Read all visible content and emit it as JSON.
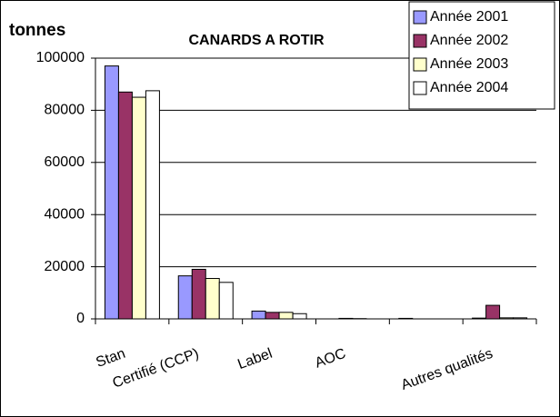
{
  "chart_data": {
    "type": "bar",
    "title": "CANARDS A ROTIR",
    "y_label": "tonnes",
    "categories": [
      "Stan",
      "Certifié (CCP)",
      "Label",
      "AOC",
      null,
      "Autres qualités"
    ],
    "series": [
      {
        "name": "Année 2001",
        "color": "#9999ff",
        "values": [
          97000,
          16500,
          3000,
          0,
          200,
          300
        ]
      },
      {
        "name": "Année 2002",
        "color": "#993366",
        "values": [
          87000,
          19000,
          2500,
          200,
          0,
          5200
        ]
      },
      {
        "name": "Année 2003",
        "color": "#ffffcc",
        "values": [
          85000,
          15500,
          2500,
          100,
          0,
          400
        ]
      },
      {
        "name": "Année 2004",
        "color": "#ffffff",
        "values": [
          87500,
          14000,
          2000,
          0,
          0,
          400
        ]
      }
    ],
    "ylim": [
      0,
      100000
    ],
    "yticks": [
      0,
      20000,
      40000,
      60000,
      80000,
      100000
    ],
    "grid": true,
    "legend": "top-right"
  }
}
